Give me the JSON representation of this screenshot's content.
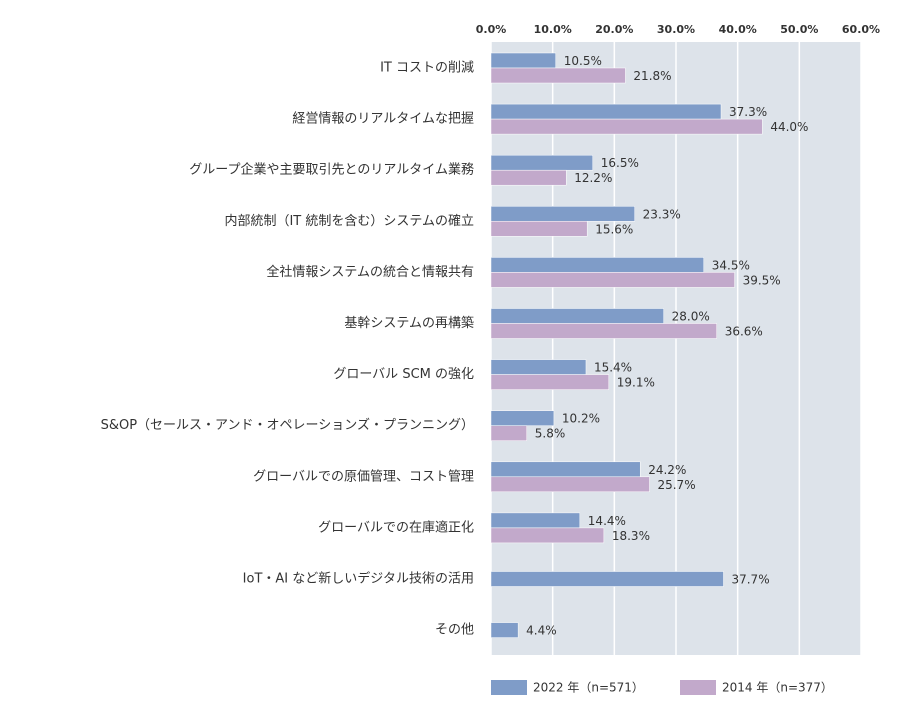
{
  "chart_data": {
    "type": "bar",
    "orientation": "horizontal",
    "categories": [
      "IT コストの削減",
      "経営情報のリアルタイムな把握",
      "グループ企業や主要取引先とのリアルタイム業務",
      "内部統制（IT 統制を含む）システムの確立",
      "全社情報システムの統合と情報共有",
      "基幹システムの再構築",
      "グローバル SCM の強化",
      "S&OP（セールス・アンド・オペレーションズ・プランニング）",
      "グローバルでの原価管理、コスト管理",
      "グローバルでの在庫適正化",
      "IoT・AI など新しいデジタル技術の活用",
      "その他"
    ],
    "series": [
      {
        "name": "2022 年（n=571）",
        "color": "#7f9cc8",
        "values": [
          10.5,
          37.3,
          16.5,
          23.3,
          34.5,
          28.0,
          15.4,
          10.2,
          24.2,
          14.4,
          37.7,
          4.4
        ],
        "value_labels": [
          "10.5%",
          "37.3%",
          "16.5%",
          "23.3%",
          "34.5%",
          "28.0%",
          "15.4%",
          "10.2%",
          "24.2%",
          "14.4%",
          "37.7%",
          "4.4%"
        ]
      },
      {
        "name": "2014 年（n=377）",
        "color": "#c2a9cb",
        "values": [
          21.8,
          44.0,
          12.2,
          15.6,
          39.5,
          36.6,
          19.1,
          5.8,
          25.7,
          18.3,
          null,
          null
        ],
        "value_labels": [
          "21.8%",
          "44.0%",
          "12.2%",
          "15.6%",
          "39.5%",
          "36.6%",
          "19.1%",
          "5.8%",
          "25.7%",
          "18.3%",
          null,
          null
        ]
      }
    ],
    "xlim": [
      0,
      60
    ],
    "xticks": [
      {
        "value": 0,
        "label": "0.0%"
      },
      {
        "value": 10,
        "label": "10.0%"
      },
      {
        "value": 20,
        "label": "20.0%"
      },
      {
        "value": 30,
        "label": "30.0%"
      },
      {
        "value": 40,
        "label": "40.0%"
      },
      {
        "value": 50,
        "label": "50.0%"
      },
      {
        "value": 60,
        "label": "60.0%"
      }
    ],
    "grid": true,
    "legend": "bottom"
  }
}
